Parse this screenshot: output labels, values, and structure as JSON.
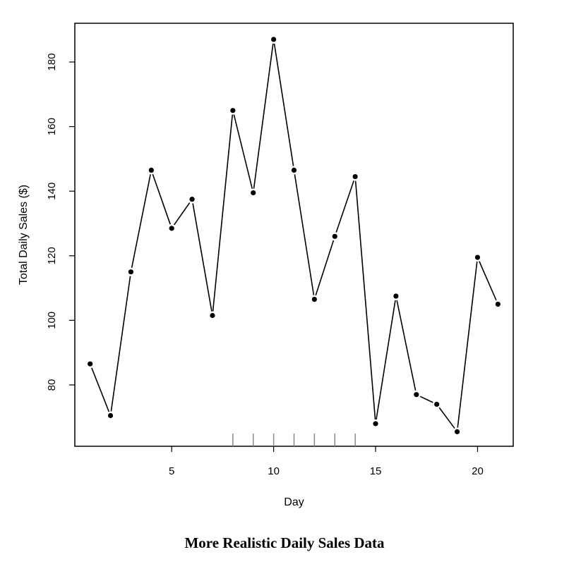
{
  "caption": "More Realistic Daily Sales Data",
  "chart_data": {
    "type": "line",
    "xlabel": "Day",
    "ylabel": "Total Daily Sales ($)",
    "xlim": [
      0.25,
      21.75
    ],
    "ylim": [
      61,
      192
    ],
    "x_ticks": [
      5,
      10,
      15,
      20
    ],
    "y_ticks": [
      80,
      100,
      120,
      140,
      160,
      180
    ],
    "grid": false,
    "series": [
      {
        "x": [
          1,
          2,
          3,
          4,
          5,
          6,
          7,
          8,
          9,
          10,
          11,
          12,
          13,
          14,
          15,
          16,
          17,
          18,
          19,
          20,
          21
        ],
        "values": [
          86.5,
          70.5,
          115,
          146.5,
          128.5,
          137.5,
          101.5,
          165,
          139.5,
          187,
          146.5,
          106.5,
          126,
          144.5,
          68,
          107.5,
          77,
          74,
          65.5,
          119.5,
          105
        ]
      }
    ],
    "rug_x": [
      8,
      9,
      10,
      11,
      12,
      13,
      14
    ]
  }
}
